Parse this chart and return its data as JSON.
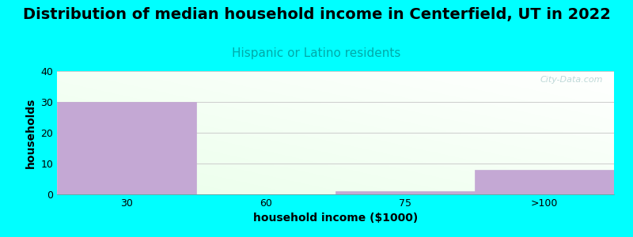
{
  "title": "Distribution of median household income in Centerfield, UT in 2022",
  "subtitle": "Hispanic or Latino residents",
  "xlabel": "household income ($1000)",
  "ylabel": "households",
  "categories": [
    "30",
    "60",
    "75",
    ">100"
  ],
  "values": [
    30,
    0,
    1,
    8
  ],
  "bar_color": "#c4a8d4",
  "bar_edge_color": "#c4a8d4",
  "background_color": "#00ffff",
  "ylim": [
    0,
    40
  ],
  "yticks": [
    0,
    10,
    20,
    30,
    40
  ],
  "title_fontsize": 14,
  "subtitle_fontsize": 11,
  "subtitle_color": "#00aaaa",
  "axis_label_fontsize": 10,
  "tick_fontsize": 9,
  "grid_color": "#cccccc",
  "watermark_text": "City-Data.com",
  "watermark_color": "#aacccc"
}
